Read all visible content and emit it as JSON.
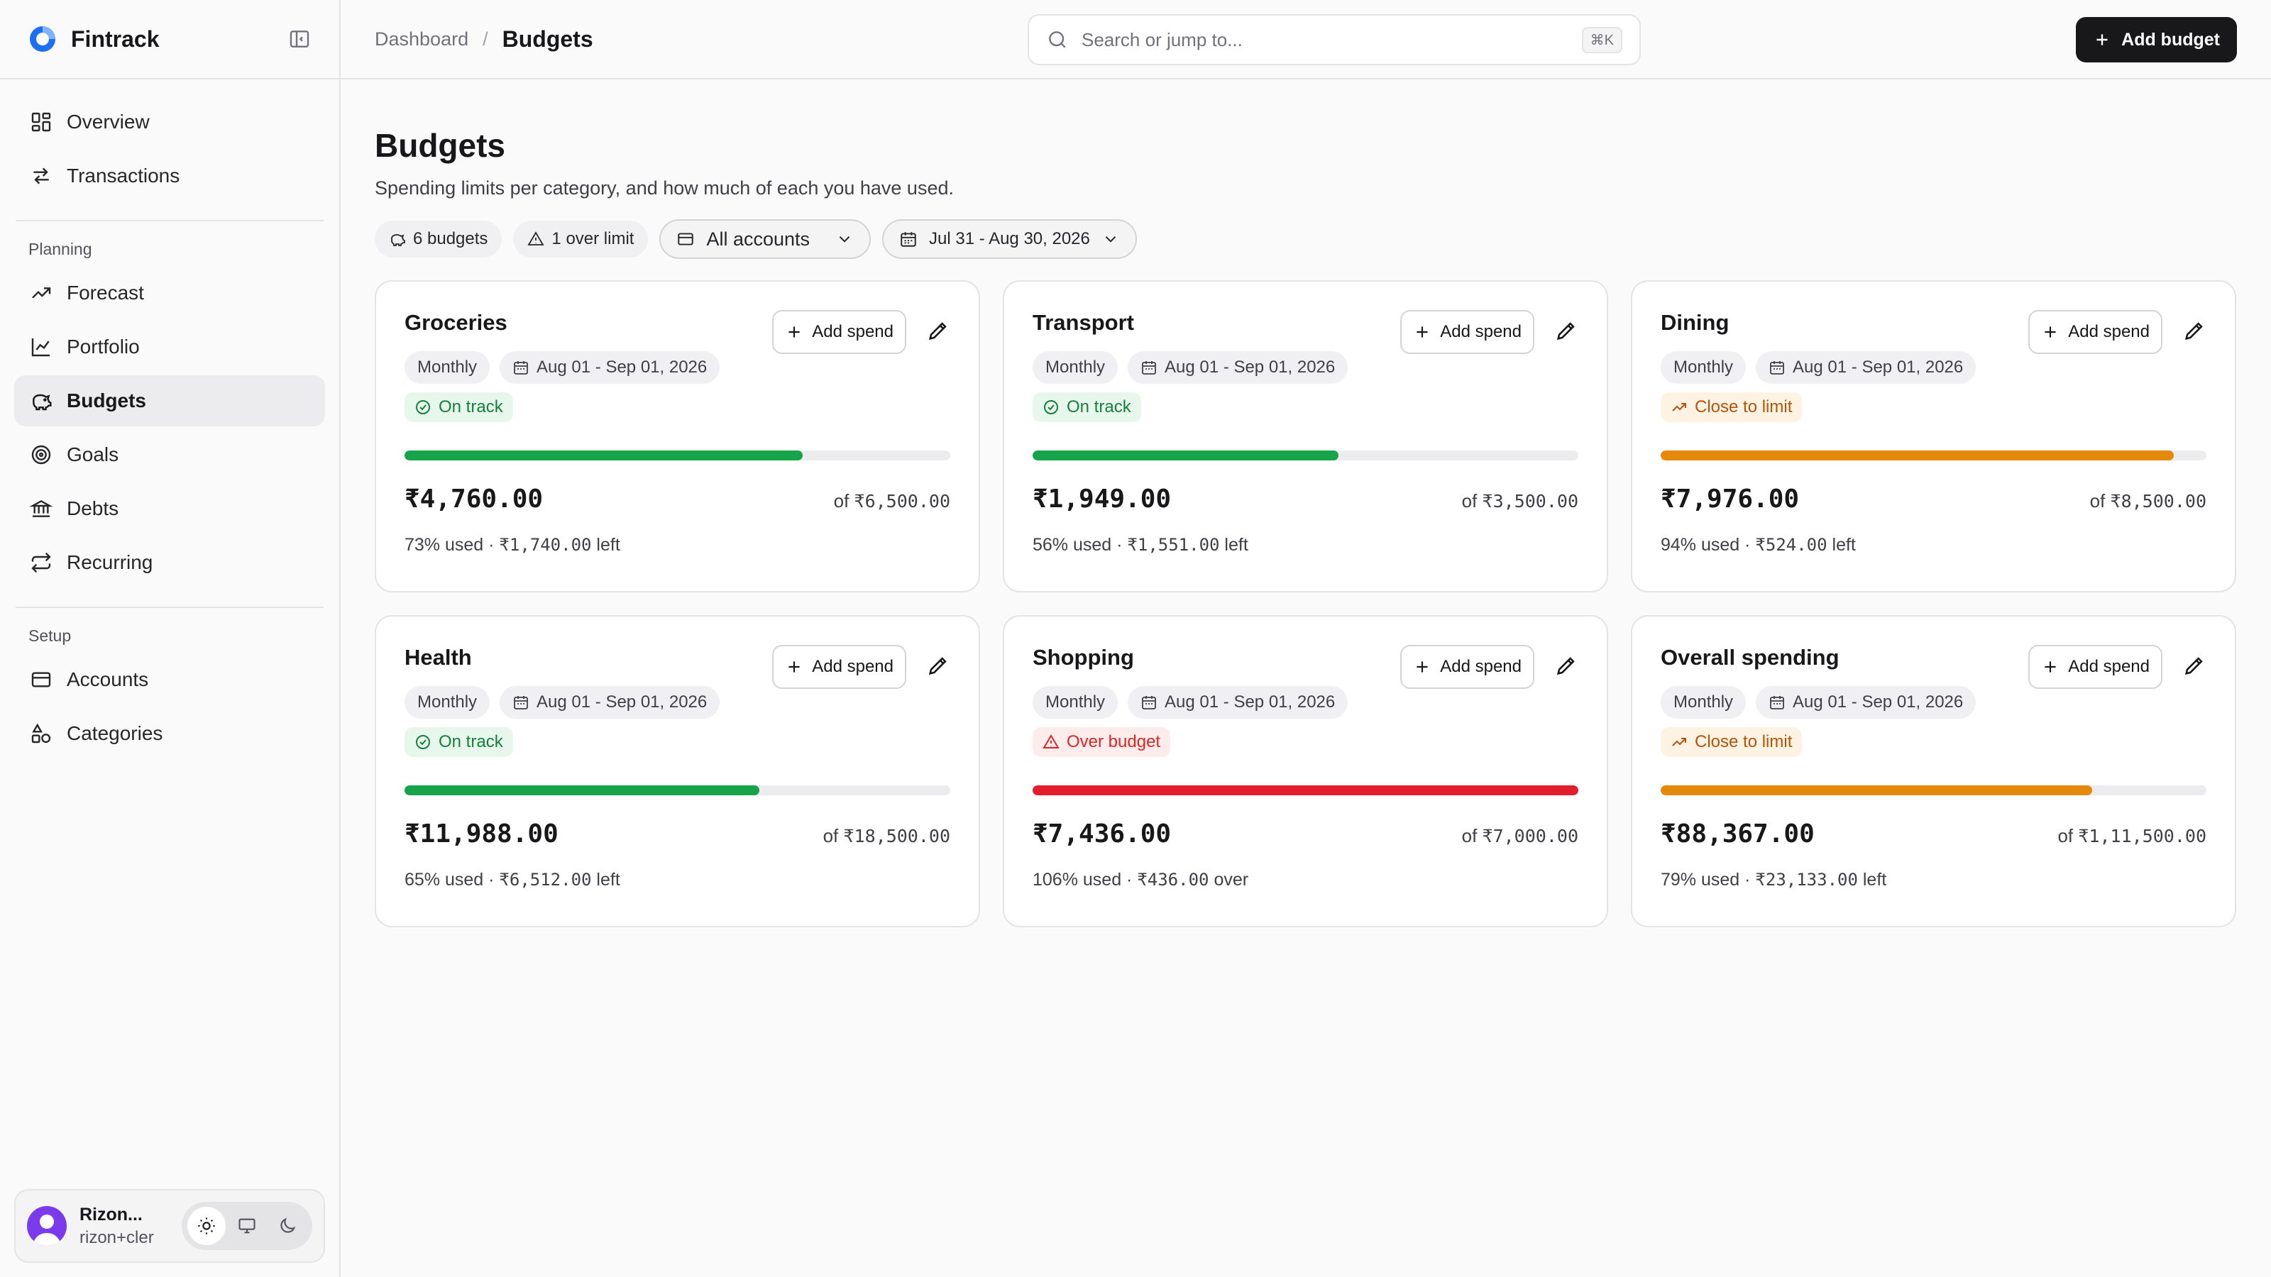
{
  "app": {
    "name": "Fintrack"
  },
  "sidebar": {
    "top_items": [
      {
        "label": "Overview",
        "icon": "dashboard-grid-icon"
      },
      {
        "label": "Transactions",
        "icon": "arrows-swap-icon"
      }
    ],
    "planning_label": "Planning",
    "planning_items": [
      {
        "label": "Forecast",
        "icon": "trending-up-icon"
      },
      {
        "label": "Portfolio",
        "icon": "line-chart-icon"
      },
      {
        "label": "Budgets",
        "icon": "piggy-bank-icon",
        "active": true
      },
      {
        "label": "Goals",
        "icon": "target-icon"
      },
      {
        "label": "Debts",
        "icon": "bank-icon"
      },
      {
        "label": "Recurring",
        "icon": "repeat-icon"
      }
    ],
    "setup_label": "Setup",
    "setup_items": [
      {
        "label": "Accounts",
        "icon": "credit-card-icon"
      },
      {
        "label": "Categories",
        "icon": "shapes-icon"
      }
    ],
    "user": {
      "name": "Rizon...",
      "email": "rizon+cler"
    }
  },
  "header": {
    "breadcrumb_parent": "Dashboard",
    "breadcrumb_sep": "/",
    "breadcrumb_current": "Budgets",
    "search_placeholder": "Search or jump to...",
    "search_shortcut": "⌘K",
    "add_budget_label": "Add budget"
  },
  "page": {
    "title": "Budgets",
    "subtitle": "Spending limits per category, and how much of each you have used.",
    "count_chip": "6 budgets",
    "over_chip": "1 over limit",
    "account_filter": "All accounts",
    "date_filter": "Jul 31 - Aug 30, 2026"
  },
  "card_labels": {
    "add_spend": "Add spend"
  },
  "colors": {
    "good": "#16a34a",
    "warn": "#e5890a",
    "bad": "#e11d2e",
    "track": "#ececee"
  },
  "budgets": [
    {
      "name": "Groceries",
      "period": "Monthly",
      "range": "Aug 01 - Sep 01, 2026",
      "status": "On track",
      "level": "good",
      "progress": 0.73,
      "spent": "₹4,760.00",
      "of_prefix": "of",
      "limit": "₹6,500.00",
      "pct_text": "73% used ·",
      "remain_amt": "₹1,740.00",
      "remain_word": "left"
    },
    {
      "name": "Transport",
      "period": "Monthly",
      "range": "Aug 01 - Sep 01, 2026",
      "status": "On track",
      "level": "good",
      "progress": 0.56,
      "spent": "₹1,949.00",
      "of_prefix": "of",
      "limit": "₹3,500.00",
      "pct_text": "56% used ·",
      "remain_amt": "₹1,551.00",
      "remain_word": "left"
    },
    {
      "name": "Dining",
      "period": "Monthly",
      "range": "Aug 01 - Sep 01, 2026",
      "status": "Close to limit",
      "level": "warn",
      "progress": 0.94,
      "spent": "₹7,976.00",
      "of_prefix": "of",
      "limit": "₹8,500.00",
      "pct_text": "94% used ·",
      "remain_amt": "₹524.00",
      "remain_word": "left"
    },
    {
      "name": "Health",
      "period": "Monthly",
      "range": "Aug 01 - Sep 01, 2026",
      "status": "On track",
      "level": "good",
      "progress": 0.65,
      "spent": "₹11,988.00",
      "of_prefix": "of",
      "limit": "₹18,500.00",
      "pct_text": "65% used ·",
      "remain_amt": "₹6,512.00",
      "remain_word": "left"
    },
    {
      "name": "Shopping",
      "period": "Monthly",
      "range": "Aug 01 - Sep 01, 2026",
      "status": "Over budget",
      "level": "bad",
      "progress": 1.0,
      "spent": "₹7,436.00",
      "of_prefix": "of",
      "limit": "₹7,000.00",
      "pct_text": "106% used ·",
      "remain_amt": "₹436.00",
      "remain_word": "over"
    },
    {
      "name": "Overall spending",
      "period": "Monthly",
      "range": "Aug 01 - Sep 01, 2026",
      "status": "Close to limit",
      "level": "warn",
      "progress": 0.79,
      "spent": "₹88,367.00",
      "of_prefix": "of",
      "limit": "₹1,11,500.00",
      "pct_text": "79% used ·",
      "remain_amt": "₹23,133.00",
      "remain_word": "left"
    }
  ]
}
